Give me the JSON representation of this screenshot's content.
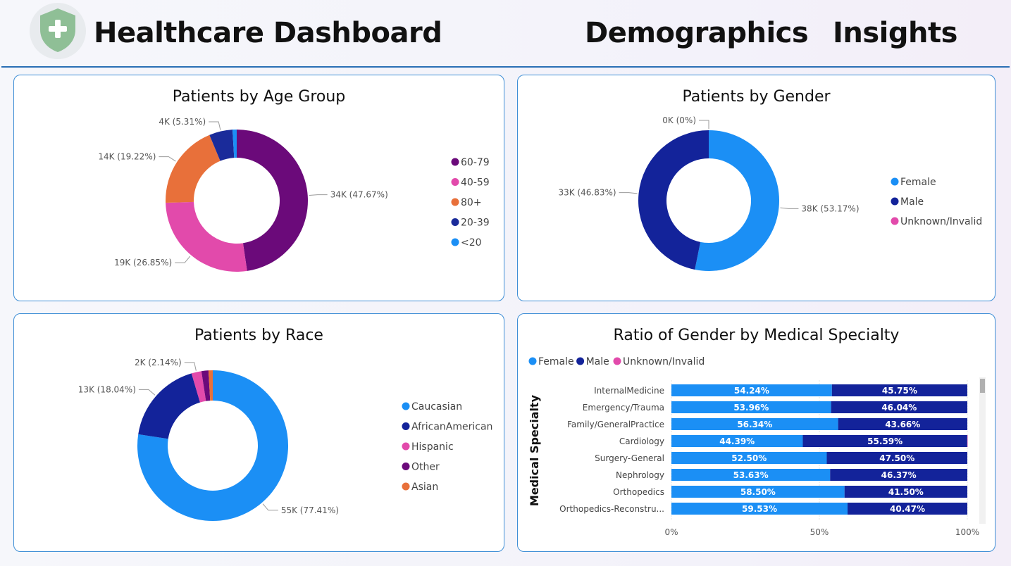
{
  "header": {
    "title": "Healthcare Dashboard",
    "nav": [
      "Demographics",
      "Insights"
    ],
    "logo_icon": "shield-plus-icon",
    "logo_color": "#8fbf96"
  },
  "panels": {
    "age": {
      "title": "Patients by Age Group"
    },
    "gender": {
      "title": "Patients by Gender"
    },
    "race": {
      "title": "Patients by Race"
    },
    "specialty": {
      "title": "Ratio of Gender by Medical Specialty"
    }
  },
  "chart_data": [
    {
      "type": "donut",
      "title": "Patients by Age Group",
      "legend_position": "right",
      "slices": [
        {
          "name": "60-79",
          "value": 47.67,
          "label": "34K (47.67%)",
          "color": "#6b0a7a"
        },
        {
          "name": "40-59",
          "value": 26.85,
          "label": "19K (26.85%)",
          "color": "#e24aab"
        },
        {
          "name": "80+",
          "value": 19.22,
          "label": "14K (19.22%)",
          "color": "#e8703a"
        },
        {
          "name": "20-39",
          "value": 5.31,
          "label": "4K (5.31%)",
          "color": "#1a2b9a"
        },
        {
          "name": "<20",
          "value": 0.95,
          "label": "",
          "color": "#1b8ff5"
        }
      ]
    },
    {
      "type": "donut",
      "title": "Patients by Gender",
      "legend_position": "right",
      "slices": [
        {
          "name": "Female",
          "value": 53.17,
          "label": "38K (53.17%)",
          "color": "#1b8ff5"
        },
        {
          "name": "Male",
          "value": 46.83,
          "label": "33K (46.83%)",
          "color": "#13239a"
        },
        {
          "name": "Unknown/Invalid",
          "value": 0,
          "label": "0K (0%)",
          "color": "#e24aab"
        }
      ]
    },
    {
      "type": "donut",
      "title": "Patients by Race",
      "legend_position": "right",
      "slices": [
        {
          "name": "Caucasian",
          "value": 77.41,
          "label": "55K (77.41%)",
          "color": "#1b8ff5"
        },
        {
          "name": "AfricanAmerican",
          "value": 18.04,
          "label": "13K (18.04%)",
          "color": "#13239a"
        },
        {
          "name": "Hispanic",
          "value": 2.14,
          "label": "2K (2.14%)",
          "color": "#e24aab"
        },
        {
          "name": "Other",
          "value": 1.5,
          "label": "",
          "color": "#6b0a7a"
        },
        {
          "name": "Asian",
          "value": 0.91,
          "label": "",
          "color": "#e8703a"
        }
      ]
    },
    {
      "type": "bar",
      "orientation": "horizontal",
      "stacked": "100%",
      "title": "Ratio of Gender by Medical Specialty",
      "ylabel": "Medical Specialty",
      "legend_position": "top-left",
      "xlim": [
        0,
        100
      ],
      "xticks": [
        "0%",
        "50%",
        "100%"
      ],
      "categories": [
        "InternalMedicine",
        "Emergency/Trauma",
        "Family/GeneralPractice",
        "Cardiology",
        "Surgery-General",
        "Nephrology",
        "Orthopedics",
        "Orthopedics-Reconstru..."
      ],
      "series": [
        {
          "name": "Female",
          "color": "#1b8ff5",
          "values": [
            54.24,
            53.96,
            56.34,
            44.39,
            52.5,
            53.63,
            58.5,
            59.53
          ],
          "labels": [
            "54.24%",
            "53.96%",
            "56.34%",
            "44.39%",
            "52.50%",
            "53.63%",
            "58.50%",
            "59.53%"
          ]
        },
        {
          "name": "Male",
          "color": "#13239a",
          "values": [
            45.75,
            46.04,
            43.66,
            55.59,
            47.5,
            46.37,
            41.5,
            40.47
          ],
          "labels": [
            "45.75%",
            "46.04%",
            "43.66%",
            "55.59%",
            "47.50%",
            "46.37%",
            "41.50%",
            "40.47%"
          ]
        },
        {
          "name": "Unknown/Invalid",
          "color": "#e24aab",
          "values": [
            0,
            0,
            0,
            0.02,
            0,
            0,
            0,
            0
          ],
          "labels": []
        }
      ]
    }
  ]
}
